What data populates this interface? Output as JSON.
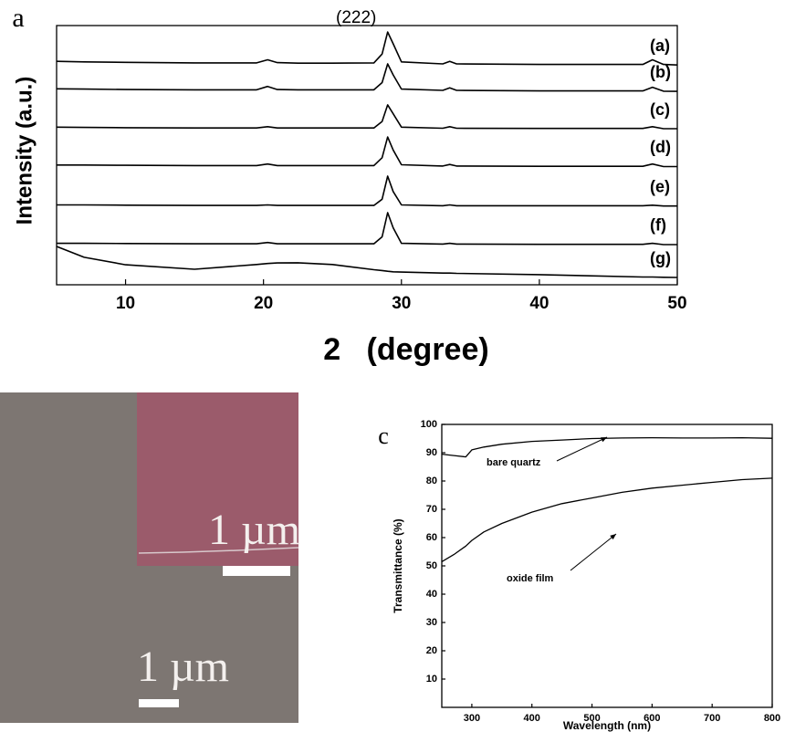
{
  "chart_data": [
    {
      "type": "line",
      "panel_label": "a",
      "x_label": "2   (degree)",
      "y_label": "Intensity (a.u.)",
      "annotations": [
        {
          "text": "(222)"
        }
      ],
      "x": [
        5,
        7,
        10,
        15,
        19.5,
        20.3,
        21,
        22.5,
        25,
        28,
        28.6,
        29,
        29.4,
        30,
        33,
        33.5,
        34,
        40,
        47.5,
        48.2,
        49,
        50
      ],
      "xlim": [
        5,
        50
      ],
      "xticks": [
        10,
        20,
        30,
        40,
        50
      ],
      "ylim": [
        0,
        10
      ],
      "series": [
        {
          "name": "(a)",
          "color": "#000000",
          "values": [
            8.62,
            8.6,
            8.58,
            8.56,
            8.56,
            8.68,
            8.57,
            8.55,
            8.55,
            8.56,
            8.9,
            9.75,
            9.3,
            8.6,
            8.52,
            8.62,
            8.52,
            8.5,
            8.5,
            8.68,
            8.5,
            8.48
          ]
        },
        {
          "name": "(b)",
          "color": "#000000",
          "values": [
            7.56,
            7.55,
            7.53,
            7.52,
            7.52,
            7.65,
            7.53,
            7.52,
            7.52,
            7.52,
            7.8,
            8.52,
            8.1,
            7.55,
            7.5,
            7.6,
            7.5,
            7.48,
            7.48,
            7.62,
            7.47,
            7.46
          ]
        },
        {
          "name": "(c)",
          "color": "#000000",
          "values": [
            6.08,
            6.07,
            6.06,
            6.05,
            6.05,
            6.1,
            6.05,
            6.05,
            6.05,
            6.05,
            6.3,
            6.94,
            6.6,
            6.08,
            6.04,
            6.1,
            6.04,
            6.03,
            6.03,
            6.1,
            6.02,
            6.02
          ]
        },
        {
          "name": "(d)",
          "color": "#000000",
          "values": [
            4.62,
            4.62,
            4.61,
            4.6,
            4.6,
            4.66,
            4.6,
            4.6,
            4.6,
            4.6,
            4.9,
            5.7,
            5.2,
            4.63,
            4.58,
            4.64,
            4.58,
            4.57,
            4.57,
            4.66,
            4.56,
            4.56
          ]
        },
        {
          "name": "(e)",
          "color": "#000000",
          "values": [
            3.08,
            3.08,
            3.07,
            3.06,
            3.06,
            3.08,
            3.06,
            3.06,
            3.06,
            3.06,
            3.3,
            4.19,
            3.6,
            3.08,
            3.05,
            3.08,
            3.05,
            3.05,
            3.05,
            3.07,
            3.04,
            3.04
          ]
        },
        {
          "name": "(f)",
          "color": "#000000",
          "values": [
            1.6,
            1.6,
            1.59,
            1.58,
            1.58,
            1.63,
            1.58,
            1.58,
            1.58,
            1.58,
            1.85,
            2.78,
            2.2,
            1.6,
            1.57,
            1.6,
            1.57,
            1.56,
            1.56,
            1.6,
            1.55,
            1.55
          ]
        },
        {
          "name": "(g)",
          "color": "#000000",
          "values": [
            1.48,
            1.06,
            0.77,
            0.6,
            0.78,
            0.82,
            0.84,
            0.85,
            0.78,
            0.58,
            0.55,
            0.52,
            0.5,
            0.49,
            0.45,
            0.45,
            0.44,
            0.39,
            0.3,
            0.3,
            0.29,
            0.28
          ]
        }
      ]
    },
    {
      "type": "line",
      "panel_label": "c",
      "x_label": "Wavelength (nm)",
      "y_label": "Transmittance (%)",
      "annotations": [
        {
          "text": "bare quartz"
        },
        {
          "text": "oxide film"
        }
      ],
      "x": [
        250,
        270,
        290,
        300,
        320,
        350,
        400,
        450,
        500,
        550,
        600,
        650,
        700,
        750,
        800
      ],
      "xlim": [
        250,
        800
      ],
      "xticks": [
        300,
        400,
        500,
        600,
        700,
        800
      ],
      "ylim": [
        0,
        100
      ],
      "yticks": [
        10,
        20,
        30,
        40,
        50,
        60,
        70,
        80,
        90,
        100
      ],
      "series": [
        {
          "name": "bare quartz",
          "color": "#000000",
          "values": [
            89.5,
            89,
            88.5,
            91,
            92,
            93,
            94,
            94.5,
            95,
            95.2,
            95.3,
            95.2,
            95.2,
            95.3,
            95.1
          ]
        },
        {
          "name": "oxide film",
          "color": "#000000",
          "values": [
            51.5,
            54,
            57,
            59,
            62,
            65,
            69,
            72,
            74,
            76,
            77.5,
            78.5,
            79.5,
            80.5,
            81
          ]
        }
      ]
    }
  ],
  "panel_b": {
    "labels": [
      "1 µm",
      "1 µm"
    ]
  }
}
